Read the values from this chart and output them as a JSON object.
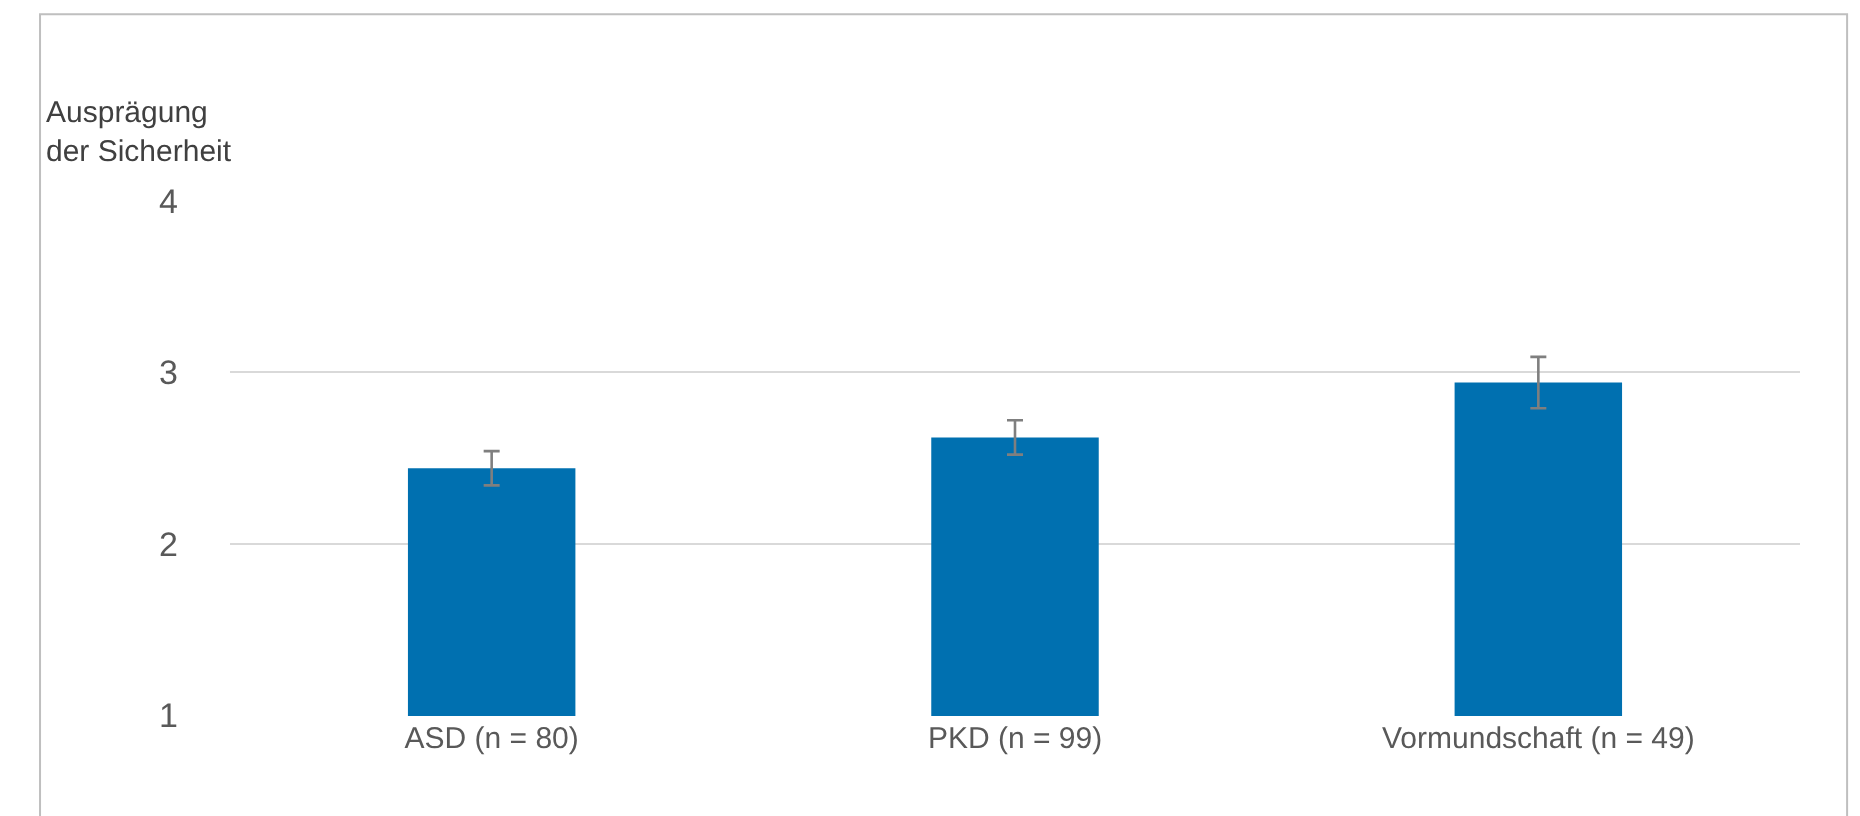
{
  "chart_data": {
    "type": "bar",
    "ylabel": "Ausprägung\nder Sicherheit",
    "categories": [
      "ASD (n = 80)",
      "PKD (n = 99)",
      "Vormundschaft (n = 49)"
    ],
    "values": [
      2.44,
      2.62,
      2.94
    ],
    "errors": [
      0.1,
      0.1,
      0.15
    ],
    "color": "#0070b0",
    "ylim": [
      1,
      4
    ],
    "yticks": [
      1,
      2,
      3,
      4
    ],
    "grid": "y"
  }
}
